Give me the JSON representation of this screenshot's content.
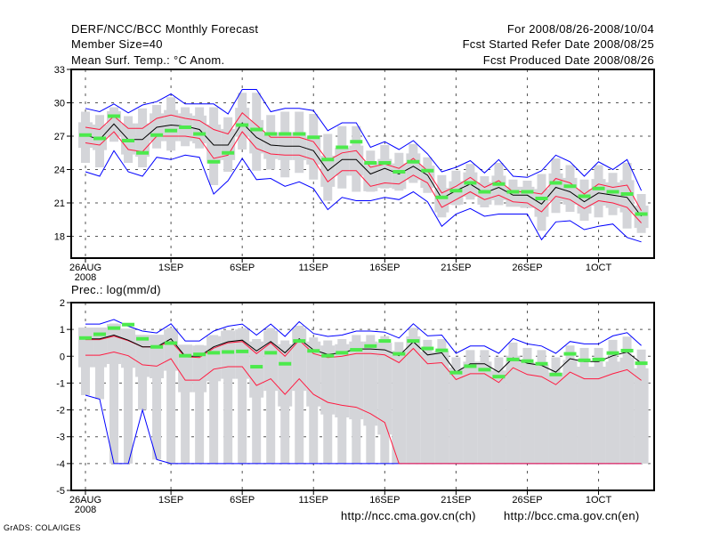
{
  "header": {
    "title": "DERF/NCC/BCC Monthly Forecast",
    "member_size": "Member Size=40",
    "variable": "Mean Surf. Temp.: °C Anom.",
    "period": "For 2008/08/26-2008/10/04",
    "started": "Fcst Started Refer Date 2008/08/25",
    "produced": "Fcst Produced Date 2008/08/26"
  },
  "footer": {
    "link_ch": "http://ncc.cma.gov.cn(ch)",
    "link_en": "http://bcc.cma.gov.cn(en)",
    "credit": "GrADS: COLA/IGES"
  },
  "colors": {
    "max_min": "#0000ff",
    "spread": "#ff1a40",
    "mean": "#000000",
    "obs": "#4cea4c",
    "range": "#d4d5d9"
  },
  "chart_data": [
    {
      "type": "line",
      "title": "Mean Surf. Temp.: °C Anom.",
      "xlabel": "",
      "ylabel": "",
      "x_unit": "day since 2008-08-26",
      "xlim": [
        -1,
        39.9
      ],
      "ylim": [
        16.04,
        33
      ],
      "yticks": [
        18,
        21,
        24,
        27,
        30,
        33
      ],
      "xticks": [
        {
          "day": 0,
          "label": "26AUG",
          "sub": "2008"
        },
        {
          "day": 6,
          "label": "1SEP"
        },
        {
          "day": 11,
          "label": "6SEP"
        },
        {
          "day": 16,
          "label": "11SEP"
        },
        {
          "day": 21,
          "label": "16SEP"
        },
        {
          "day": 26,
          "label": "21SEP"
        },
        {
          "day": 31,
          "label": "26SEP"
        },
        {
          "day": 36,
          "label": "1OCT"
        }
      ],
      "grid": true,
      "series": [
        {
          "name": "max",
          "color": "#0000ff",
          "values": [
            29.5,
            29.2,
            29.9,
            29.1,
            29.8,
            30.1,
            30.8,
            29.9,
            29.9,
            29.9,
            29.0,
            31.2,
            31.2,
            29.2,
            29.5,
            29.5,
            29.3,
            27.5,
            28.2,
            28.2,
            26.0,
            26.5,
            25.8,
            26.6,
            25.4,
            23.8,
            24.2,
            24.8,
            23.7,
            24.9,
            23.4,
            23.3,
            23.9,
            25.3,
            24.7,
            23.4,
            24.7,
            24.0,
            24.9,
            22.1
          ]
        },
        {
          "name": "upper",
          "color": "#ff1a40",
          "values": [
            27.8,
            27.6,
            28.8,
            27.7,
            27.7,
            28.6,
            28.9,
            28.6,
            28.4,
            27.6,
            27.2,
            29.1,
            28.0,
            26.9,
            26.9,
            26.9,
            26.5,
            24.8,
            25.5,
            25.7,
            24.2,
            24.5,
            24.1,
            25.0,
            23.9,
            21.9,
            22.5,
            23.3,
            22.4,
            23.0,
            22.0,
            22.0,
            21.8,
            23.2,
            22.8,
            21.8,
            22.7,
            22.4,
            22.6,
            20.3
          ]
        },
        {
          "name": "mean",
          "color": "#000000",
          "values": [
            27.1,
            26.7,
            28.1,
            26.7,
            26.7,
            27.8,
            28.0,
            27.9,
            27.6,
            26.2,
            26.2,
            28.2,
            26.9,
            26.2,
            26.1,
            26.1,
            25.7,
            23.9,
            24.9,
            24.9,
            23.6,
            24.1,
            23.6,
            24.3,
            23.5,
            21.4,
            22.1,
            22.7,
            21.9,
            22.4,
            21.7,
            21.7,
            20.9,
            22.4,
            22.0,
            21.1,
            21.9,
            21.7,
            21.5,
            19.8
          ]
        },
        {
          "name": "lower",
          "color": "#ff1a40",
          "values": [
            26.4,
            26.2,
            27.4,
            25.8,
            25.6,
            27.0,
            27.0,
            27.0,
            26.8,
            25.0,
            25.3,
            27.4,
            25.9,
            25.4,
            25.3,
            25.3,
            24.9,
            22.9,
            23.9,
            23.9,
            22.5,
            22.8,
            22.7,
            23.5,
            22.8,
            20.6,
            21.3,
            22.0,
            21.3,
            21.7,
            21.1,
            21.0,
            20.2,
            21.6,
            21.3,
            20.5,
            21.2,
            21.0,
            20.6,
            19.2
          ]
        },
        {
          "name": "min",
          "color": "#0000ff",
          "values": [
            23.8,
            23.4,
            25.7,
            23.8,
            23.4,
            25.1,
            24.9,
            25.3,
            25.1,
            21.8,
            23.0,
            25.0,
            23.1,
            23.2,
            22.5,
            22.9,
            22.3,
            20.4,
            21.5,
            21.2,
            21.2,
            21.5,
            21.3,
            22.0,
            21.1,
            18.9,
            20.0,
            20.5,
            19.8,
            20.0,
            20.0,
            20.0,
            17.7,
            19.3,
            19.4,
            18.6,
            18.9,
            19.1,
            17.9,
            17.5
          ]
        },
        {
          "name": "observed",
          "color": "#4cea4c",
          "marker": "bar",
          "values": [
            27.1,
            26.8,
            28.8,
            26.6,
            25.5,
            27.1,
            27.5,
            27.8,
            27.2,
            24.7,
            25.5,
            28.0,
            27.6,
            27.2,
            27.2,
            27.2,
            26.9,
            24.9,
            26.0,
            26.5,
            24.6,
            24.6,
            23.8,
            24.7,
            23.9,
            21.5,
            22.1,
            22.8,
            22.0,
            22.7,
            22.0,
            22.0,
            21.4,
            22.8,
            22.5,
            21.6,
            22.3,
            22.0,
            21.8,
            20.0
          ]
        }
      ]
    },
    {
      "type": "line",
      "title": "Prec.: log(mm/d)",
      "xlabel": "",
      "ylabel": "",
      "x_unit": "day since 2008-08-26",
      "xlim": [
        -1,
        39.9
      ],
      "ylim": [
        -5,
        2
      ],
      "yticks": [
        -5,
        -4,
        -3,
        -2,
        -1,
        0,
        1,
        2
      ],
      "xticks": [
        {
          "day": 0,
          "label": "26AUG",
          "sub": "2008"
        },
        {
          "day": 6,
          "label": "1SEP"
        },
        {
          "day": 11,
          "label": "6SEP"
        },
        {
          "day": 16,
          "label": "11SEP"
        },
        {
          "day": 21,
          "label": "16SEP"
        },
        {
          "day": 26,
          "label": "21SEP"
        },
        {
          "day": 31,
          "label": "26SEP"
        },
        {
          "day": 36,
          "label": "1OCT"
        }
      ],
      "grid": true,
      "series": [
        {
          "name": "max",
          "color": "#0000ff",
          "values": [
            1.2,
            1.2,
            1.37,
            1.12,
            0.94,
            0.87,
            1.21,
            0.57,
            0.57,
            0.94,
            1.12,
            1.2,
            0.79,
            1.2,
            0.74,
            1.29,
            0.85,
            0.74,
            0.79,
            0.94,
            0.94,
            0.9,
            0.68,
            1.21,
            0.76,
            0.79,
            0.11,
            0.38,
            0.38,
            0.11,
            0.66,
            0.46,
            0.38,
            0.11,
            0.55,
            0.46,
            0.46,
            0.76,
            0.88,
            0.4
          ]
        },
        {
          "name": "mean",
          "color": "#000000",
          "values": [
            0.65,
            0.65,
            0.79,
            0.6,
            0.35,
            0.35,
            0.65,
            0.0,
            0.0,
            0.35,
            0.54,
            0.6,
            0.2,
            0.55,
            0.13,
            0.65,
            0.24,
            0.07,
            0.13,
            0.27,
            0.27,
            0.24,
            0.02,
            0.54,
            0.05,
            0.13,
            -0.59,
            -0.28,
            -0.28,
            -0.59,
            -0.06,
            -0.26,
            -0.34,
            -0.59,
            -0.09,
            -0.2,
            -0.2,
            0.02,
            0.16,
            -0.26
          ]
        },
        {
          "name": "upper",
          "color": "#ff1a40",
          "values": [
            0.62,
            0.62,
            0.75,
            0.58,
            0.35,
            0.35,
            0.55,
            -0.02,
            -0.05,
            0.3,
            0.5,
            0.55,
            0.1,
            0.5,
            0.0,
            0.6,
            0.1,
            -0.05,
            0.0,
            0.1,
            0.1,
            0.05,
            -0.24,
            0.29,
            -0.28,
            -0.24,
            -0.87,
            -0.65,
            -0.65,
            -0.98,
            -0.43,
            -0.68,
            -0.76,
            -1.06,
            -0.59,
            -0.84,
            -0.84,
            -0.65,
            -0.5,
            -0.9
          ]
        },
        {
          "name": "lower",
          "color": "#ff1a40",
          "values": [
            0.04,
            0.04,
            0.16,
            0.02,
            -0.32,
            -0.37,
            -0.09,
            -0.89,
            -0.89,
            -0.48,
            -0.39,
            -0.39,
            -1.09,
            -0.84,
            -1.42,
            -0.84,
            -1.42,
            -1.72,
            -1.83,
            -1.9,
            -2.14,
            -2.47,
            -4,
            -4,
            -4,
            -4,
            -4,
            -4,
            -4,
            -4,
            -4,
            -4,
            -4,
            -4,
            -4,
            -4,
            -4,
            -4,
            -4,
            -4
          ]
        },
        {
          "name": "min",
          "color": "#0000ff",
          "values": [
            -1.45,
            -1.6,
            -4,
            -4,
            -2.0,
            -3.85,
            -4,
            -4,
            -4,
            -4,
            -4,
            -4,
            -4,
            -4,
            -4,
            -4,
            -4,
            -4,
            -4,
            -4,
            -4,
            -4,
            -4,
            -4,
            -4,
            -4,
            -4,
            -4,
            -4,
            -4,
            -4,
            -4,
            -4,
            -4,
            -4,
            -4,
            -4,
            -4,
            -4,
            -4
          ]
        },
        {
          "name": "observed",
          "color": "#4cea4c",
          "marker": "bar",
          "values": [
            0.68,
            0.82,
            1.05,
            1.18,
            0.65,
            0.35,
            0.49,
            0.02,
            0.07,
            0.13,
            0.16,
            0.18,
            -0.39,
            0.13,
            -0.28,
            0.57,
            0.2,
            0.02,
            0.13,
            0.24,
            0.38,
            0.57,
            0.09,
            0.57,
            0.29,
            0.22,
            -0.61,
            -0.37,
            -0.5,
            -0.76,
            -0.12,
            -0.18,
            -0.28,
            -0.68,
            0.09,
            -0.15,
            -0.12,
            0.12,
            0.21,
            -0.26
          ]
        }
      ]
    }
  ]
}
